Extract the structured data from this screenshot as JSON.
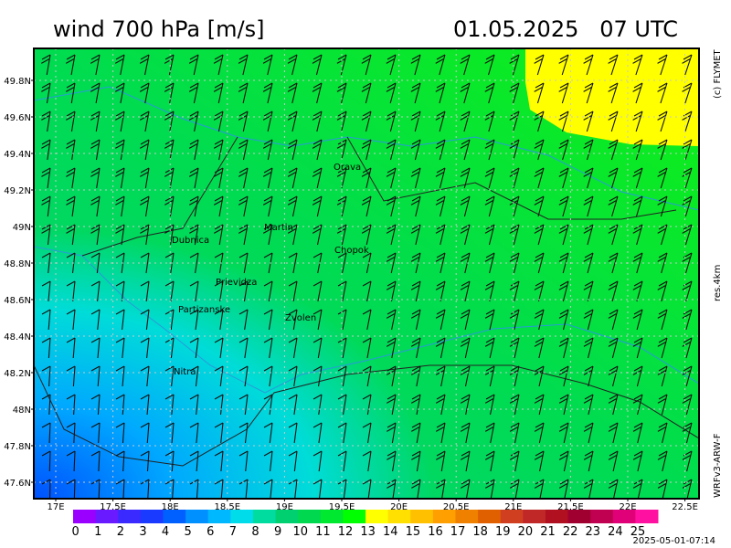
{
  "header": {
    "title": "wind 700 hPa [m/s]",
    "datetime": "01.05.2025   07 UTC"
  },
  "side_labels": {
    "copyright": "(c) FLYMET",
    "resolution": "res.4km",
    "model": "WRFv3-ARW-F"
  },
  "map": {
    "lat_ticks": [
      "49.8N",
      "49.6N",
      "49.4N",
      "49.2N",
      "49N",
      "48.8N",
      "48.6N",
      "48.4N",
      "48.2N",
      "48N",
      "47.8N",
      "47.6N"
    ],
    "lon_ticks": [
      "17E",
      "17.5E",
      "18E",
      "18.5E",
      "19E",
      "19.5E",
      "20E",
      "20.5E",
      "21E",
      "21.5E",
      "22E",
      "22.5E"
    ],
    "cities": [
      "Orava",
      "Dubnica",
      "Martin",
      "Chopok",
      "Prievidza",
      "Partizanske",
      "Zvolen",
      "Nitra"
    ]
  },
  "colorbar": {
    "labels": [
      0,
      1,
      2,
      3,
      4,
      5,
      6,
      7,
      8,
      9,
      10,
      11,
      12,
      13,
      14,
      15,
      16,
      17,
      18,
      19,
      20,
      21,
      22,
      23,
      24,
      25
    ],
    "colors": [
      "#9a00ff",
      "#6a1aff",
      "#3a2aff",
      "#1a3aff",
      "#0060ff",
      "#0090ff",
      "#00b8ff",
      "#00dcea",
      "#00dca0",
      "#00d070",
      "#00d850",
      "#00e830",
      "#00ff00",
      "#ffff00",
      "#ffe000",
      "#ffc000",
      "#ffa000",
      "#f08000",
      "#e06000",
      "#d04020",
      "#c02828",
      "#b01020",
      "#a00030",
      "#c00050",
      "#e00078",
      "#ff10a0"
    ]
  },
  "footer": {
    "timestamp": "2025-05-01-07:14"
  }
}
